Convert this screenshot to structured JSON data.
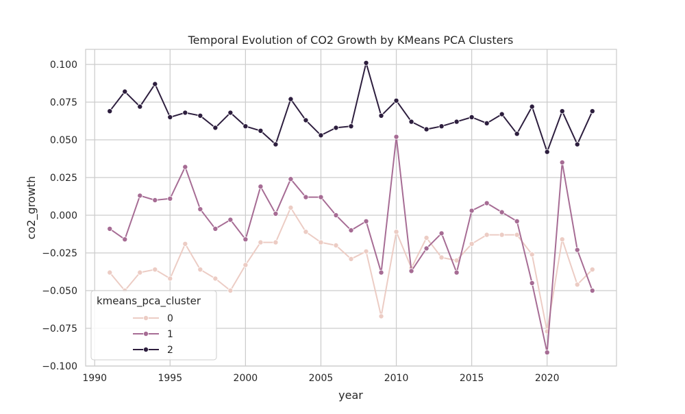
{
  "chart_data": {
    "type": "line",
    "title": "Temporal Evolution of CO2 Growth by KMeans PCA Clusters",
    "xlabel": "year",
    "ylabel": "co2_growth",
    "xlim": [
      1989.4,
      2024.6
    ],
    "ylim": [
      -0.1,
      0.11
    ],
    "x_ticks": [
      1990,
      1995,
      2000,
      2005,
      2010,
      2015,
      2020
    ],
    "x_tick_labels": [
      "1990",
      "1995",
      "2000",
      "2005",
      "2010",
      "2015",
      "2020"
    ],
    "y_ticks": [
      -0.1,
      -0.075,
      -0.05,
      -0.025,
      0.0,
      0.025,
      0.05,
      0.075,
      0.1
    ],
    "y_tick_labels": [
      "−0.100",
      "−0.075",
      "−0.050",
      "−0.025",
      "0.000",
      "0.025",
      "0.050",
      "0.075",
      "0.100"
    ],
    "grid": true,
    "legend": {
      "title": "kmeans_pca_cluster",
      "placement": "lower-left"
    },
    "x": [
      1991,
      1992,
      1993,
      1994,
      1995,
      1996,
      1997,
      1998,
      1999,
      2000,
      2001,
      2002,
      2003,
      2004,
      2005,
      2006,
      2007,
      2008,
      2009,
      2010,
      2011,
      2012,
      2013,
      2014,
      2015,
      2016,
      2017,
      2018,
      2019,
      2020,
      2021,
      2022,
      2023
    ],
    "series": [
      {
        "name": "0",
        "color": "#ecccc4",
        "values": [
          -0.038,
          -0.05,
          -0.038,
          -0.036,
          -0.042,
          -0.019,
          -0.036,
          -0.042,
          -0.05,
          -0.033,
          -0.018,
          -0.018,
          0.005,
          -0.011,
          -0.018,
          -0.02,
          -0.029,
          -0.024,
          -0.067,
          -0.011,
          -0.035,
          -0.015,
          -0.028,
          -0.03,
          -0.019,
          -0.013,
          -0.013,
          -0.013,
          -0.026,
          -0.077,
          -0.016,
          -0.046,
          -0.036
        ]
      },
      {
        "name": "1",
        "color": "#a66c94",
        "values": [
          -0.009,
          -0.016,
          0.013,
          0.01,
          0.011,
          0.032,
          0.004,
          -0.009,
          -0.003,
          -0.016,
          0.019,
          0.001,
          0.024,
          0.012,
          0.012,
          0.0,
          -0.01,
          -0.004,
          -0.038,
          0.052,
          -0.037,
          -0.022,
          -0.012,
          -0.038,
          0.003,
          0.008,
          0.002,
          -0.004,
          -0.045,
          -0.091,
          0.035,
          -0.023,
          -0.05
        ]
      },
      {
        "name": "2",
        "color": "#2d1e3e",
        "values": [
          0.069,
          0.082,
          0.072,
          0.087,
          0.065,
          0.068,
          0.066,
          0.058,
          0.068,
          0.059,
          0.056,
          0.047,
          0.077,
          0.063,
          0.053,
          0.058,
          0.059,
          0.101,
          0.066,
          0.076,
          0.062,
          0.057,
          0.059,
          0.062,
          0.065,
          0.061,
          0.067,
          0.054,
          0.072,
          0.042,
          0.069,
          0.047,
          0.069
        ]
      }
    ]
  }
}
